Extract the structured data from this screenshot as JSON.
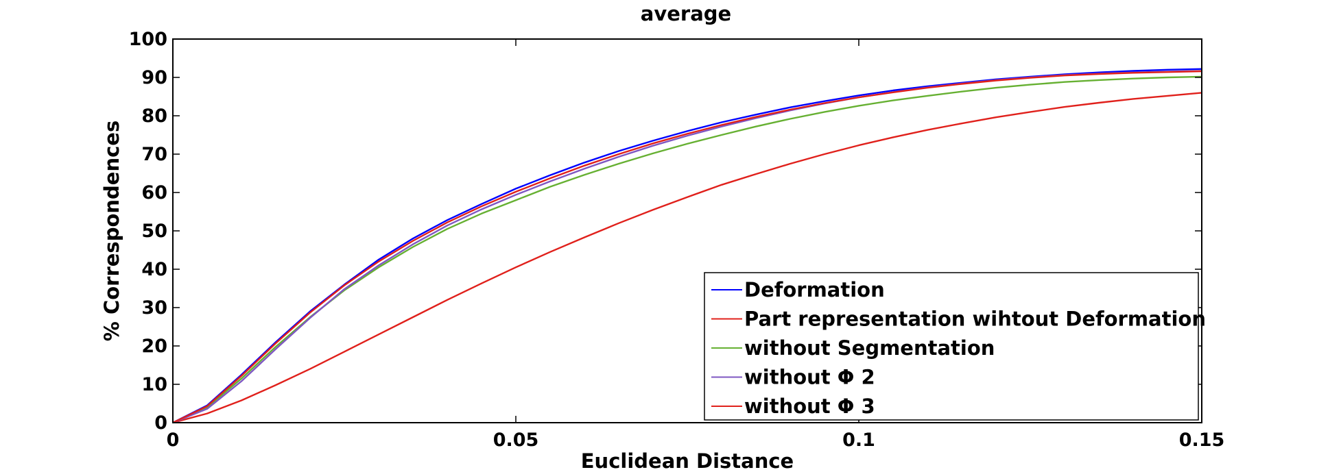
{
  "chart_data": {
    "type": "line",
    "title": "average",
    "xlabel": "Euclidean Distance",
    "ylabel": "% Correspondences",
    "xlim": [
      0,
      0.15
    ],
    "ylim": [
      0,
      100
    ],
    "x_ticks": [
      0,
      0.05,
      0.1,
      0.15
    ],
    "x_tick_labels": [
      "0",
      "0.05",
      "0.1",
      "0.15"
    ],
    "y_ticks": [
      0,
      10,
      20,
      30,
      40,
      50,
      60,
      70,
      80,
      90,
      100
    ],
    "y_tick_labels": [
      "0",
      "10",
      "20",
      "30",
      "40",
      "50",
      "60",
      "70",
      "80",
      "90",
      "100"
    ],
    "grid": false,
    "legend_position": "bottom-right",
    "x": [
      0,
      0.005,
      0.01,
      0.015,
      0.02,
      0.025,
      0.03,
      0.035,
      0.04,
      0.045,
      0.05,
      0.055,
      0.06,
      0.065,
      0.07,
      0.075,
      0.08,
      0.085,
      0.09,
      0.095,
      0.1,
      0.105,
      0.11,
      0.115,
      0.12,
      0.125,
      0.13,
      0.135,
      0.14,
      0.145,
      0.15
    ],
    "series": [
      {
        "name": "Deformation",
        "color": "#0000ff",
        "values": [
          0,
          4.5,
          12.5,
          21,
          29,
          36,
          42.5,
          48,
          52.8,
          57,
          61,
          64.5,
          67.8,
          70.8,
          73.5,
          76,
          78.3,
          80.3,
          82.2,
          83.8,
          85.3,
          86.6,
          87.7,
          88.6,
          89.5,
          90.2,
          90.8,
          91.3,
          91.7,
          92,
          92.2
        ]
      },
      {
        "name": "Part representation wihtout Deformation",
        "color": "#e0201b",
        "values": [
          0,
          2.4,
          5.8,
          9.8,
          14,
          18.5,
          23,
          27.5,
          32,
          36.3,
          40.5,
          44.5,
          48.3,
          52,
          55.5,
          58.8,
          62,
          64.8,
          67.5,
          70,
          72.3,
          74.4,
          76.3,
          78,
          79.6,
          81,
          82.3,
          83.4,
          84.4,
          85.2,
          86
        ]
      },
      {
        "name": "without Segmentation",
        "color": "#66b032",
        "values": [
          0,
          4,
          11.5,
          19.8,
          27.5,
          34.5,
          40.5,
          45.8,
          50.5,
          54.5,
          58,
          61.5,
          64.6,
          67.5,
          70.2,
          72.7,
          75,
          77.2,
          79.2,
          81,
          82.6,
          84,
          85.2,
          86.3,
          87.3,
          88.1,
          88.8,
          89.3,
          89.7,
          90,
          90.2
        ]
      },
      {
        "name": "without Φ 2",
        "color": "#7e57c2",
        "values": [
          0,
          3.6,
          10.8,
          19.2,
          27.3,
          34.8,
          41,
          46.5,
          51.4,
          55.6,
          59.4,
          62.9,
          66.2,
          69.3,
          72.2,
          74.8,
          77.2,
          79.4,
          81.4,
          83.2,
          84.8,
          86.2,
          87.4,
          88.4,
          89.3,
          90,
          90.6,
          91,
          91.3,
          91.5,
          91.7
        ]
      },
      {
        "name": "without Φ 3",
        "color": "#e0201b",
        "values": [
          0,
          4.3,
          12.2,
          20.7,
          28.7,
          35.8,
          42,
          47.4,
          52.2,
          56.4,
          60.2,
          63.7,
          67,
          70,
          72.8,
          75.3,
          77.6,
          79.7,
          81.6,
          83.3,
          84.8,
          86.1,
          87.3,
          88.3,
          89.2,
          89.9,
          90.5,
          90.9,
          91.2,
          91.4,
          91.6
        ]
      }
    ]
  }
}
